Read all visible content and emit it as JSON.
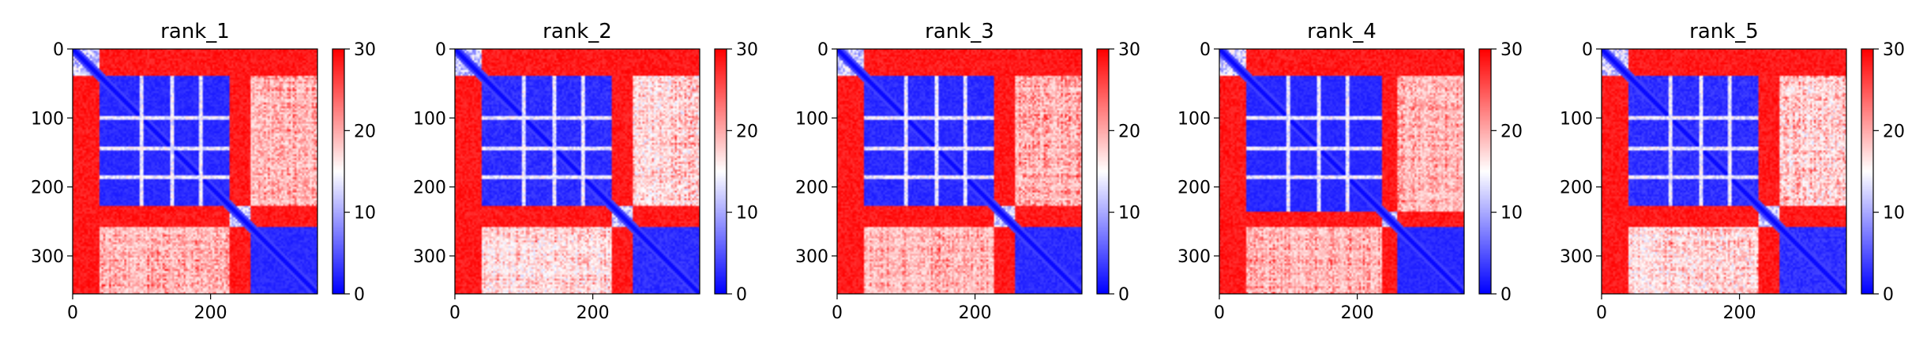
{
  "colormap": {
    "name": "bwr",
    "low": "#0000ff",
    "mid": "#ffffff",
    "high": "#ff0000",
    "vmin": 0,
    "vmax": 30,
    "ticks": [
      "0",
      "10",
      "20",
      "30"
    ],
    "tick_values": [
      0,
      10,
      20,
      30
    ]
  },
  "chart_data": [
    {
      "type": "heatmap",
      "title": "rank_1",
      "x_ticks": [
        {
          "value": 0,
          "label": "0"
        },
        {
          "value": 200,
          "label": "200"
        }
      ],
      "y_ticks": [
        {
          "value": 0,
          "label": "0"
        },
        {
          "value": 100,
          "label": "100"
        },
        {
          "value": 200,
          "label": "200"
        },
        {
          "value": 300,
          "label": "300"
        }
      ],
      "xlim": [
        0,
        355
      ],
      "ylim": [
        355,
        0
      ],
      "n": 355,
      "domains": [
        [
          0,
          40
        ],
        [
          40,
          228
        ],
        [
          228,
          258
        ],
        [
          258,
          355
        ]
      ],
      "stripes": [
        100,
        145,
        185
      ],
      "red_band": [
        228,
        258
      ],
      "noise": 0.55,
      "seed": 11
    },
    {
      "type": "heatmap",
      "title": "rank_2",
      "x_ticks": [
        {
          "value": 0,
          "label": "0"
        },
        {
          "value": 200,
          "label": "200"
        }
      ],
      "y_ticks": [
        {
          "value": 0,
          "label": "0"
        },
        {
          "value": 100,
          "label": "100"
        },
        {
          "value": 200,
          "label": "200"
        },
        {
          "value": 300,
          "label": "300"
        }
      ],
      "xlim": [
        0,
        355
      ],
      "ylim": [
        355,
        0
      ],
      "n": 355,
      "domains": [
        [
          0,
          40
        ],
        [
          40,
          228
        ],
        [
          228,
          258
        ],
        [
          258,
          355
        ]
      ],
      "stripes": [
        100,
        145,
        185
      ],
      "red_band": [
        228,
        258
      ],
      "noise": 0.7,
      "seed": 23
    },
    {
      "type": "heatmap",
      "title": "rank_3",
      "x_ticks": [
        {
          "value": 0,
          "label": "0"
        },
        {
          "value": 200,
          "label": "200"
        }
      ],
      "y_ticks": [
        {
          "value": 0,
          "label": "0"
        },
        {
          "value": 100,
          "label": "100"
        },
        {
          "value": 200,
          "label": "200"
        },
        {
          "value": 300,
          "label": "300"
        }
      ],
      "xlim": [
        0,
        355
      ],
      "ylim": [
        355,
        0
      ],
      "n": 355,
      "domains": [
        [
          0,
          40
        ],
        [
          40,
          228
        ],
        [
          228,
          258
        ],
        [
          258,
          355
        ]
      ],
      "stripes": [
        100,
        145,
        185
      ],
      "red_band": [
        228,
        258
      ],
      "noise": 0.6,
      "seed": 37
    },
    {
      "type": "heatmap",
      "title": "rank_4",
      "x_ticks": [
        {
          "value": 0,
          "label": "0"
        },
        {
          "value": 200,
          "label": "200"
        }
      ],
      "y_ticks": [
        {
          "value": 0,
          "label": "0"
        },
        {
          "value": 100,
          "label": "100"
        },
        {
          "value": 200,
          "label": "200"
        },
        {
          "value": 300,
          "label": "300"
        }
      ],
      "xlim": [
        0,
        355
      ],
      "ylim": [
        355,
        0
      ],
      "n": 355,
      "domains": [
        [
          0,
          40
        ],
        [
          40,
          235
        ],
        [
          235,
          258
        ],
        [
          258,
          355
        ]
      ],
      "stripes": [
        100,
        145,
        185
      ],
      "red_band": [
        235,
        258
      ],
      "noise": 0.5,
      "seed": 41
    },
    {
      "type": "heatmap",
      "title": "rank_5",
      "x_ticks": [
        {
          "value": 0,
          "label": "0"
        },
        {
          "value": 200,
          "label": "200"
        }
      ],
      "y_ticks": [
        {
          "value": 0,
          "label": "0"
        },
        {
          "value": 100,
          "label": "100"
        },
        {
          "value": 200,
          "label": "200"
        },
        {
          "value": 300,
          "label": "300"
        }
      ],
      "xlim": [
        0,
        355
      ],
      "ylim": [
        355,
        0
      ],
      "n": 355,
      "domains": [
        [
          0,
          40
        ],
        [
          40,
          228
        ],
        [
          228,
          258
        ],
        [
          258,
          355
        ]
      ],
      "stripes": [
        100,
        145,
        185
      ],
      "red_band": [
        228,
        258
      ],
      "noise": 0.75,
      "seed": 53
    }
  ]
}
